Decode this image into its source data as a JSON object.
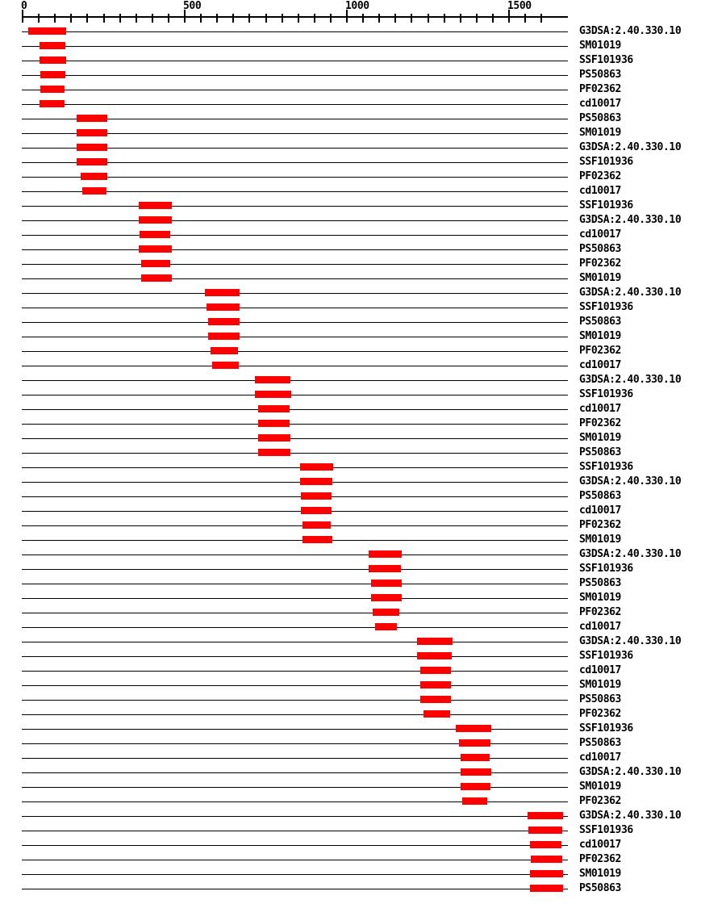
{
  "chart_data": {
    "type": "bar",
    "subtype": "protein-domain-architecture-spans",
    "title": "",
    "xlabel": "",
    "ylabel": "",
    "axis": {
      "min": 0,
      "max": 1680,
      "major_ticks": [
        0,
        500,
        1000,
        1500
      ],
      "tick_labels": [
        "0",
        "500",
        "1000",
        "1500"
      ],
      "minor_tick_interval": 50
    },
    "legend": "none",
    "grid": false,
    "colors": {
      "block": "#ff0000",
      "line": "#000000",
      "text": "#000000",
      "background": "#ffffff"
    },
    "rows": [
      {
        "label": "G3DSA:2.40.330.10",
        "start": 17,
        "end": 134
      },
      {
        "label": "SM01019",
        "start": 52,
        "end": 132
      },
      {
        "label": "SSF101936",
        "start": 52,
        "end": 134
      },
      {
        "label": "PS50863",
        "start": 55,
        "end": 132
      },
      {
        "label": "PF02362",
        "start": 55,
        "end": 129
      },
      {
        "label": "cd10017",
        "start": 52,
        "end": 129
      },
      {
        "label": "PS50863",
        "start": 167,
        "end": 261
      },
      {
        "label": "SM01019",
        "start": 167,
        "end": 261
      },
      {
        "label": "G3DSA:2.40.330.10",
        "start": 167,
        "end": 261
      },
      {
        "label": "SSF101936",
        "start": 167,
        "end": 261
      },
      {
        "label": "PF02362",
        "start": 179,
        "end": 261
      },
      {
        "label": "cd10017",
        "start": 184,
        "end": 259
      },
      {
        "label": "SSF101936",
        "start": 358,
        "end": 460
      },
      {
        "label": "G3DSA:2.40.330.10",
        "start": 358,
        "end": 460
      },
      {
        "label": "cd10017",
        "start": 361,
        "end": 455
      },
      {
        "label": "PS50863",
        "start": 358,
        "end": 460
      },
      {
        "label": "PF02362",
        "start": 366,
        "end": 455
      },
      {
        "label": "SM01019",
        "start": 366,
        "end": 460
      },
      {
        "label": "G3DSA:2.40.330.10",
        "start": 562,
        "end": 669
      },
      {
        "label": "SSF101936",
        "start": 567,
        "end": 669
      },
      {
        "label": "PS50863",
        "start": 572,
        "end": 669
      },
      {
        "label": "SM01019",
        "start": 572,
        "end": 669
      },
      {
        "label": "PF02362",
        "start": 580,
        "end": 664
      },
      {
        "label": "cd10017",
        "start": 585,
        "end": 667
      },
      {
        "label": "G3DSA:2.40.330.10",
        "start": 716,
        "end": 826
      },
      {
        "label": "SSF101936",
        "start": 716,
        "end": 828
      },
      {
        "label": "cd10017",
        "start": 726,
        "end": 823
      },
      {
        "label": "PF02362",
        "start": 726,
        "end": 823
      },
      {
        "label": "SM01019",
        "start": 726,
        "end": 826
      },
      {
        "label": "PS50863",
        "start": 726,
        "end": 826
      },
      {
        "label": "SSF101936",
        "start": 856,
        "end": 958
      },
      {
        "label": "G3DSA:2.40.330.10",
        "start": 856,
        "end": 955
      },
      {
        "label": "PS50863",
        "start": 858,
        "end": 953
      },
      {
        "label": "cd10017",
        "start": 858,
        "end": 953
      },
      {
        "label": "PF02362",
        "start": 863,
        "end": 950
      },
      {
        "label": "SM01019",
        "start": 863,
        "end": 955
      },
      {
        "label": "G3DSA:2.40.330.10",
        "start": 1067,
        "end": 1169
      },
      {
        "label": "SSF101936",
        "start": 1067,
        "end": 1167
      },
      {
        "label": "PS50863",
        "start": 1074,
        "end": 1169
      },
      {
        "label": "SM01019",
        "start": 1074,
        "end": 1169
      },
      {
        "label": "PF02362",
        "start": 1079,
        "end": 1162
      },
      {
        "label": "cd10017",
        "start": 1087,
        "end": 1154
      },
      {
        "label": "G3DSA:2.40.330.10",
        "start": 1216,
        "end": 1326
      },
      {
        "label": "SSF101936",
        "start": 1216,
        "end": 1323
      },
      {
        "label": "cd10017",
        "start": 1226,
        "end": 1321
      },
      {
        "label": "SM01019",
        "start": 1226,
        "end": 1321
      },
      {
        "label": "PS50863",
        "start": 1226,
        "end": 1321
      },
      {
        "label": "PF02362",
        "start": 1236,
        "end": 1318
      },
      {
        "label": "SSF101936",
        "start": 1336,
        "end": 1445
      },
      {
        "label": "PS50863",
        "start": 1346,
        "end": 1443
      },
      {
        "label": "cd10017",
        "start": 1351,
        "end": 1440
      },
      {
        "label": "G3DSA:2.40.330.10",
        "start": 1351,
        "end": 1445
      },
      {
        "label": "SM01019",
        "start": 1351,
        "end": 1443
      },
      {
        "label": "PF02362",
        "start": 1356,
        "end": 1433
      },
      {
        "label": "G3DSA:2.40.330.10",
        "start": 1557,
        "end": 1666
      },
      {
        "label": "SSF101936",
        "start": 1560,
        "end": 1664
      },
      {
        "label": "cd10017",
        "start": 1565,
        "end": 1662
      },
      {
        "label": "PF02362",
        "start": 1567,
        "end": 1664
      },
      {
        "label": "SM01019",
        "start": 1565,
        "end": 1666
      },
      {
        "label": "PS50863",
        "start": 1565,
        "end": 1666
      }
    ]
  }
}
